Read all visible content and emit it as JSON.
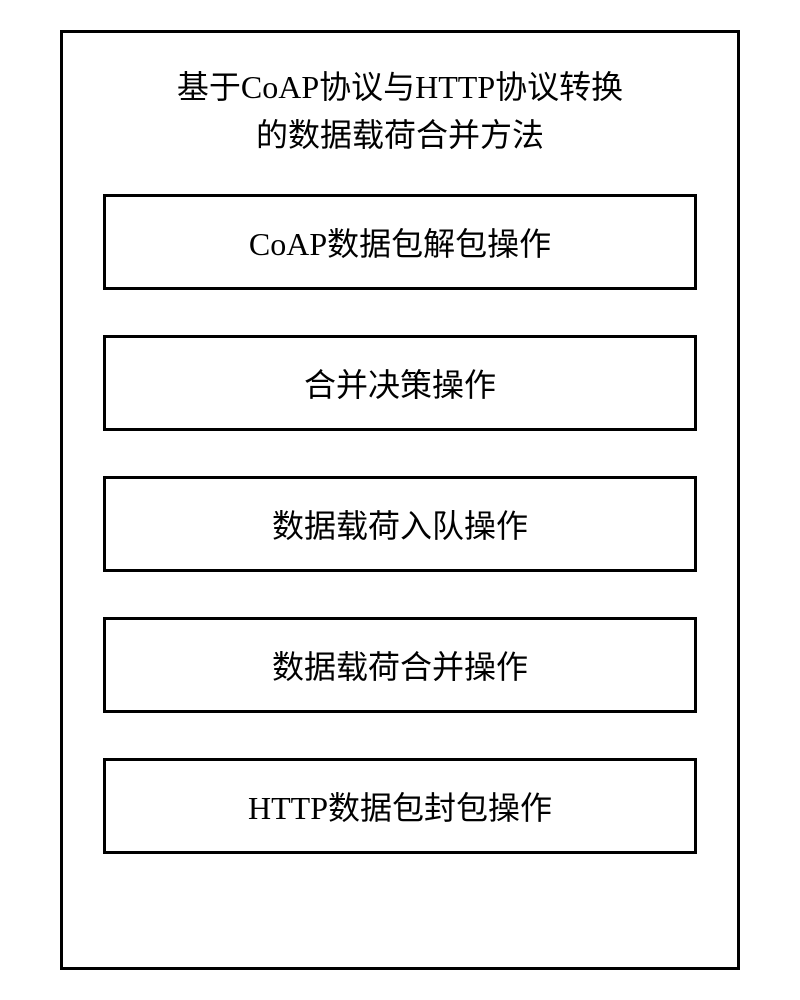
{
  "diagram": {
    "type": "flowchart",
    "title_line1": "基于CoAP协议与HTTP协议转换",
    "title_line2": "的数据载荷合并方法",
    "title_fontsize": 32,
    "steps": [
      {
        "label": "CoAP数据包解包操作"
      },
      {
        "label": "合并决策操作"
      },
      {
        "label": "数据载荷入队操作"
      },
      {
        "label": "数据载荷合并操作"
      },
      {
        "label": "HTTP数据包封包操作"
      }
    ],
    "step_fontsize": 32,
    "border_color": "#000000",
    "border_width": 3,
    "background_color": "#ffffff",
    "text_color": "#000000",
    "box_gap": 45,
    "box_padding_vertical": 22,
    "container_padding": 40
  }
}
